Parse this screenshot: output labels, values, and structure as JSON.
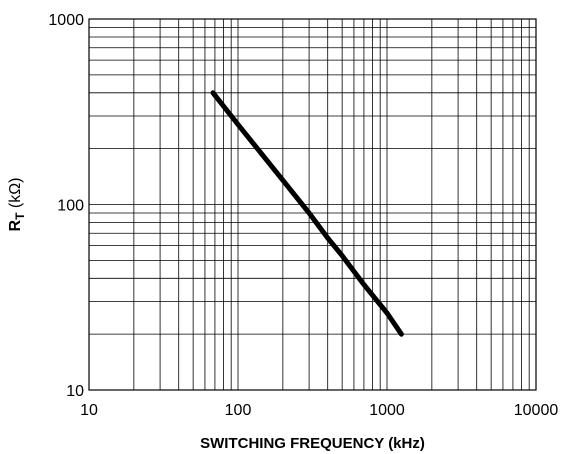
{
  "chart_data": {
    "type": "line",
    "title": "",
    "xlabel": "SWITCHING FREQUENCY (kHz)",
    "ylabel_main": "R",
    "ylabel_sub": "T",
    "ylabel_unit": " (kΩ)",
    "x_scale": "log",
    "y_scale": "log",
    "xlim": [
      10,
      10000
    ],
    "ylim": [
      10,
      1000
    ],
    "grid": true,
    "x_ticks": [
      {
        "value": 10,
        "label": "10"
      },
      {
        "value": 100,
        "label": "100"
      },
      {
        "value": 1000,
        "label": "1000"
      },
      {
        "value": 10000,
        "label": "10000"
      }
    ],
    "y_ticks": [
      {
        "value": 10,
        "label": "10"
      },
      {
        "value": 100,
        "label": "100"
      },
      {
        "value": 1000,
        "label": "1000"
      }
    ],
    "series": [
      {
        "x": [
          68,
          100,
          150,
          200,
          300,
          400,
          500,
          700,
          1000,
          1250
        ],
        "y": [
          400,
          270,
          180,
          135,
          90,
          66,
          53,
          37,
          26,
          20
        ]
      }
    ]
  }
}
